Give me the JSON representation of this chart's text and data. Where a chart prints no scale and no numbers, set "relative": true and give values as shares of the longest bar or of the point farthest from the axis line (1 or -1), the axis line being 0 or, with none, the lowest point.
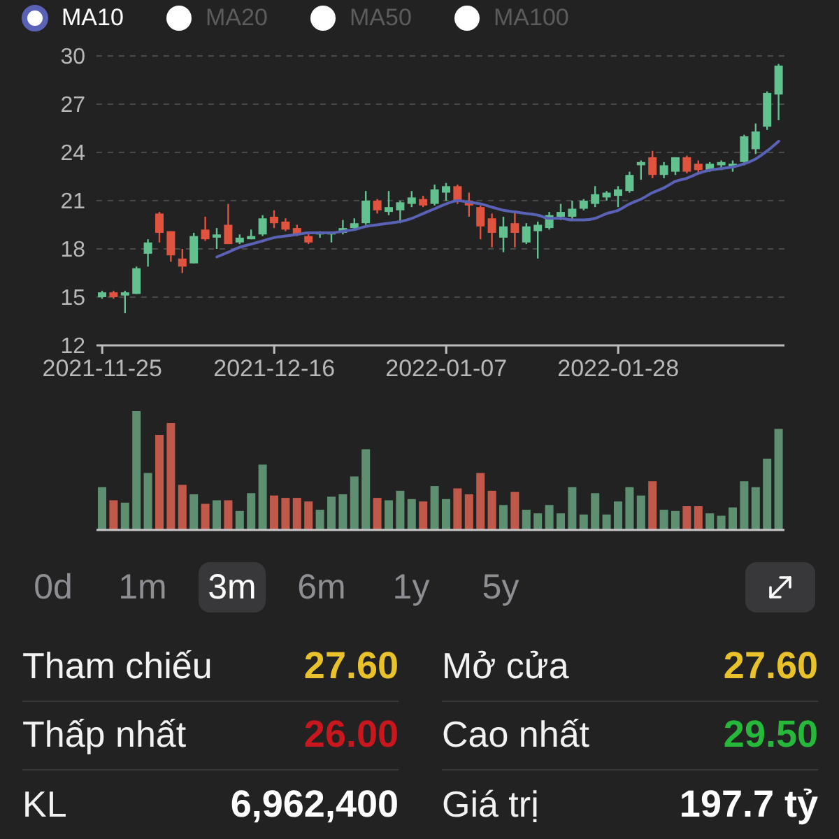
{
  "chart_data": [
    {
      "type": "candlestick",
      "categories": [
        "2021-11-25",
        null,
        null,
        null,
        null,
        null,
        null,
        null,
        null,
        null,
        null,
        null,
        null,
        null,
        null,
        "2021-12-16",
        null,
        null,
        null,
        null,
        null,
        null,
        null,
        null,
        null,
        null,
        null,
        null,
        null,
        null,
        "2022-01-07",
        null,
        null,
        null,
        null,
        null,
        null,
        null,
        null,
        null,
        null,
        null,
        null,
        null,
        null,
        "2022-01-28",
        null,
        null,
        null,
        null,
        null,
        null,
        null,
        null,
        null,
        null,
        null,
        null,
        null,
        null
      ],
      "ohlc": [
        [
          15.0,
          15.4,
          14.9,
          15.3
        ],
        [
          15.3,
          15.4,
          14.9,
          15.0
        ],
        [
          15.1,
          15.4,
          14.0,
          15.3
        ],
        [
          15.2,
          16.9,
          15.2,
          16.8
        ],
        [
          17.7,
          18.6,
          16.9,
          18.4
        ],
        [
          20.2,
          20.3,
          18.4,
          19.0
        ],
        [
          19.1,
          19.1,
          17.2,
          17.6
        ],
        [
          17.4,
          18.0,
          16.5,
          16.9
        ],
        [
          17.1,
          19.0,
          17.1,
          18.8
        ],
        [
          19.2,
          20.0,
          18.5,
          18.6
        ],
        [
          18.7,
          19.3,
          18.0,
          18.9
        ],
        [
          19.5,
          20.8,
          18.3,
          18.3
        ],
        [
          18.4,
          18.9,
          18.3,
          18.7
        ],
        [
          18.6,
          19.2,
          18.6,
          18.8
        ],
        [
          18.9,
          20.1,
          18.8,
          19.9
        ],
        [
          20.0,
          20.4,
          19.3,
          19.6
        ],
        [
          19.7,
          19.9,
          19.1,
          19.2
        ],
        [
          19.3,
          19.5,
          18.8,
          18.9
        ],
        [
          18.8,
          19.0,
          18.3,
          18.4
        ],
        [
          18.9,
          19.1,
          18.7,
          19.0
        ],
        [
          18.9,
          19.0,
          18.4,
          19.0
        ],
        [
          19.0,
          19.8,
          18.9,
          19.3
        ],
        [
          19.3,
          19.9,
          19.2,
          19.6
        ],
        [
          19.6,
          21.6,
          19.5,
          21.0
        ],
        [
          21.0,
          21.1,
          20.2,
          20.4
        ],
        [
          20.3,
          21.6,
          20.1,
          20.6
        ],
        [
          20.4,
          21.0,
          19.6,
          20.9
        ],
        [
          20.8,
          21.6,
          20.6,
          21.2
        ],
        [
          21.1,
          21.3,
          20.6,
          20.7
        ],
        [
          20.8,
          22.0,
          20.7,
          21.7
        ],
        [
          21.5,
          22.1,
          21.0,
          21.9
        ],
        [
          21.9,
          22.0,
          20.8,
          21.0
        ],
        [
          21.0,
          21.5,
          20.0,
          20.7
        ],
        [
          20.6,
          20.7,
          18.6,
          19.4
        ],
        [
          19.9,
          20.2,
          18.1,
          19.0
        ],
        [
          18.7,
          20.0,
          17.8,
          19.4
        ],
        [
          19.6,
          20.3,
          18.1,
          19.0
        ],
        [
          18.4,
          19.6,
          18.3,
          19.4
        ],
        [
          19.1,
          19.7,
          17.4,
          19.5
        ],
        [
          19.3,
          20.3,
          19.2,
          20.1
        ],
        [
          20.0,
          20.8,
          19.8,
          20.3
        ],
        [
          20.0,
          21.0,
          19.8,
          20.5
        ],
        [
          20.5,
          21.1,
          20.4,
          21.0
        ],
        [
          20.8,
          21.9,
          20.6,
          21.4
        ],
        [
          21.2,
          21.6,
          21.0,
          21.5
        ],
        [
          21.3,
          21.9,
          20.6,
          21.7
        ],
        [
          21.6,
          22.8,
          21.5,
          22.6
        ],
        [
          23.2,
          23.5,
          22.3,
          23.4
        ],
        [
          23.7,
          24.1,
          22.4,
          22.6
        ],
        [
          22.6,
          23.4,
          22.4,
          23.2
        ],
        [
          22.8,
          23.7,
          22.6,
          23.7
        ],
        [
          23.7,
          23.8,
          22.7,
          22.8
        ],
        [
          23.3,
          23.5,
          22.7,
          22.9
        ],
        [
          22.9,
          23.4,
          22.8,
          23.3
        ],
        [
          23.2,
          23.5,
          22.9,
          23.4
        ],
        [
          23.1,
          23.5,
          22.8,
          23.3
        ],
        [
          23.4,
          25.1,
          23.2,
          25.0
        ],
        [
          24.2,
          25.8,
          23.9,
          25.3
        ],
        [
          25.6,
          27.8,
          25.4,
          27.7
        ],
        [
          27.6,
          29.5,
          26.0,
          29.4
        ]
      ],
      "colors": [
        "#63c08f",
        "#e0533f",
        "#63c08f",
        "#63c08f",
        "#63c08f",
        "#e0533f",
        "#e0533f",
        "#e0533f",
        "#63c08f",
        "#e0533f",
        "#63c08f",
        "#e0533f",
        "#63c08f",
        "#63c08f",
        "#63c08f",
        "#e0533f",
        "#e0533f",
        "#e0533f",
        "#e0533f",
        "#63c08f",
        "#63c08f",
        "#63c08f",
        "#63c08f",
        "#63c08f",
        "#e0533f",
        "#63c08f",
        "#63c08f",
        "#63c08f",
        "#e0533f",
        "#63c08f",
        "#63c08f",
        "#e0533f",
        "#e0533f",
        "#e0533f",
        "#e0533f",
        "#63c08f",
        "#e0533f",
        "#63c08f",
        "#63c08f",
        "#63c08f",
        "#63c08f",
        "#63c08f",
        "#63c08f",
        "#63c08f",
        "#63c08f",
        "#63c08f",
        "#63c08f",
        "#63c08f",
        "#e0533f",
        "#63c08f",
        "#63c08f",
        "#e0533f",
        "#e0533f",
        "#63c08f",
        "#63c08f",
        "#63c08f",
        "#63c08f",
        "#63c08f",
        "#63c08f",
        "#63c08f"
      ],
      "series": [
        {
          "type": "line",
          "name": "MA10",
          "color": "#5a62b5",
          "values": [
            null,
            null,
            null,
            null,
            null,
            null,
            null,
            null,
            null,
            null,
            17.5,
            17.8,
            18.1,
            18.3,
            18.5,
            18.7,
            18.8,
            18.9,
            19.0,
            19.0,
            19.0,
            19.1,
            19.2,
            19.4,
            19.5,
            19.6,
            19.7,
            19.9,
            20.2,
            20.5,
            20.8,
            21.0,
            20.9,
            20.8,
            20.6,
            20.4,
            20.3,
            20.2,
            20.1,
            19.9,
            19.9,
            19.8,
            19.8,
            19.9,
            20.2,
            20.4,
            20.8,
            21.1,
            21.5,
            21.8,
            22.2,
            22.4,
            22.7,
            22.9,
            23.0,
            23.1,
            23.3,
            23.6,
            24.1,
            24.7
          ]
        }
      ],
      "ylim": [
        12,
        30
      ],
      "yticks": [
        12,
        15,
        18,
        21,
        24,
        27,
        30
      ],
      "grid": "y",
      "legend": "top left",
      "annotations": [
        "MA20",
        "MA50",
        "MA100"
      ]
    },
    {
      "type": "bar",
      "relative": true,
      "categories": [
        null,
        null,
        null,
        null,
        null,
        null,
        null,
        null,
        null,
        null,
        null,
        null,
        null,
        null,
        null,
        null,
        null,
        null,
        null,
        null,
        null,
        null,
        null,
        null,
        null,
        null,
        null,
        null,
        null,
        null,
        null,
        null,
        null,
        null,
        null,
        null,
        null,
        null,
        null,
        null,
        null,
        null,
        null,
        null,
        null,
        null,
        null,
        null,
        null,
        null,
        null,
        null,
        null,
        null,
        null,
        null,
        null,
        null,
        null,
        null
      ],
      "values": [
        0.36,
        0.25,
        0.23,
        1,
        0.48,
        0.8,
        0.9,
        0.38,
        0.3,
        0.22,
        0.25,
        0.25,
        0.16,
        0.31,
        0.55,
        0.29,
        0.27,
        0.27,
        0.24,
        0.17,
        0.28,
        0.3,
        0.45,
        0.68,
        0.27,
        0.25,
        0.33,
        0.26,
        0.24,
        0.37,
        0.26,
        0.35,
        0.3,
        0.48,
        0.33,
        0.21,
        0.32,
        0.17,
        0.14,
        0.21,
        0.14,
        0.36,
        0.13,
        0.31,
        0.13,
        0.24,
        0.36,
        0.29,
        0.41,
        0.17,
        0.16,
        0.2,
        0.2,
        0.14,
        0.12,
        0.19,
        0.41,
        0.36,
        0.6,
        0.85
      ],
      "colors": [
        "#5e8f70",
        "#c1594a",
        "#5e8f70",
        "#5e8f70",
        "#5e8f70",
        "#c1594a",
        "#c1594a",
        "#c1594a",
        "#5e8f70",
        "#c1594a",
        "#5e8f70",
        "#c1594a",
        "#5e8f70",
        "#5e8f70",
        "#5e8f70",
        "#c1594a",
        "#c1594a",
        "#c1594a",
        "#c1594a",
        "#5e8f70",
        "#5e8f70",
        "#5e8f70",
        "#5e8f70",
        "#5e8f70",
        "#c1594a",
        "#5e8f70",
        "#5e8f70",
        "#5e8f70",
        "#c1594a",
        "#5e8f70",
        "#5e8f70",
        "#c1594a",
        "#c1594a",
        "#c1594a",
        "#c1594a",
        "#5e8f70",
        "#c1594a",
        "#5e8f70",
        "#5e8f70",
        "#5e8f70",
        "#5e8f70",
        "#5e8f70",
        "#5e8f70",
        "#5e8f70",
        "#5e8f70",
        "#5e8f70",
        "#5e8f70",
        "#5e8f70",
        "#c1594a",
        "#5e8f70",
        "#5e8f70",
        "#c1594a",
        "#c1594a",
        "#5e8f70",
        "#5e8f70",
        "#5e8f70",
        "#5e8f70",
        "#5e8f70",
        "#5e8f70",
        "#5e8f70"
      ]
    },
    {
      "type": "other",
      "categories": [
        "0d",
        "1m",
        "3m",
        "6m",
        "1y",
        "5y"
      ],
      "colors": [
        "#222222",
        "#222222",
        "#38383a",
        "#222222",
        "#222222",
        "#222222"
      ]
    },
    {
      "type": "other",
      "annotations": [
        "Tham chiếu",
        "27.60",
        "Mở cửa",
        "27.60",
        "Thấp nhất",
        "26.00",
        "Cao nhất",
        "29.50",
        "KL",
        "6,962,400",
        "Giá trị",
        "197.7 tỷ"
      ],
      "colors": [
        "#f2f2f2",
        "#e9c12b",
        "#f2f2f2",
        "#e9c12b",
        "#f2f2f2",
        "#c8181d",
        "#f2f2f2",
        "#25b83b",
        "#f2f2f2",
        "#ffffff",
        "#f2f2f2",
        "#ffffff"
      ]
    }
  ]
}
